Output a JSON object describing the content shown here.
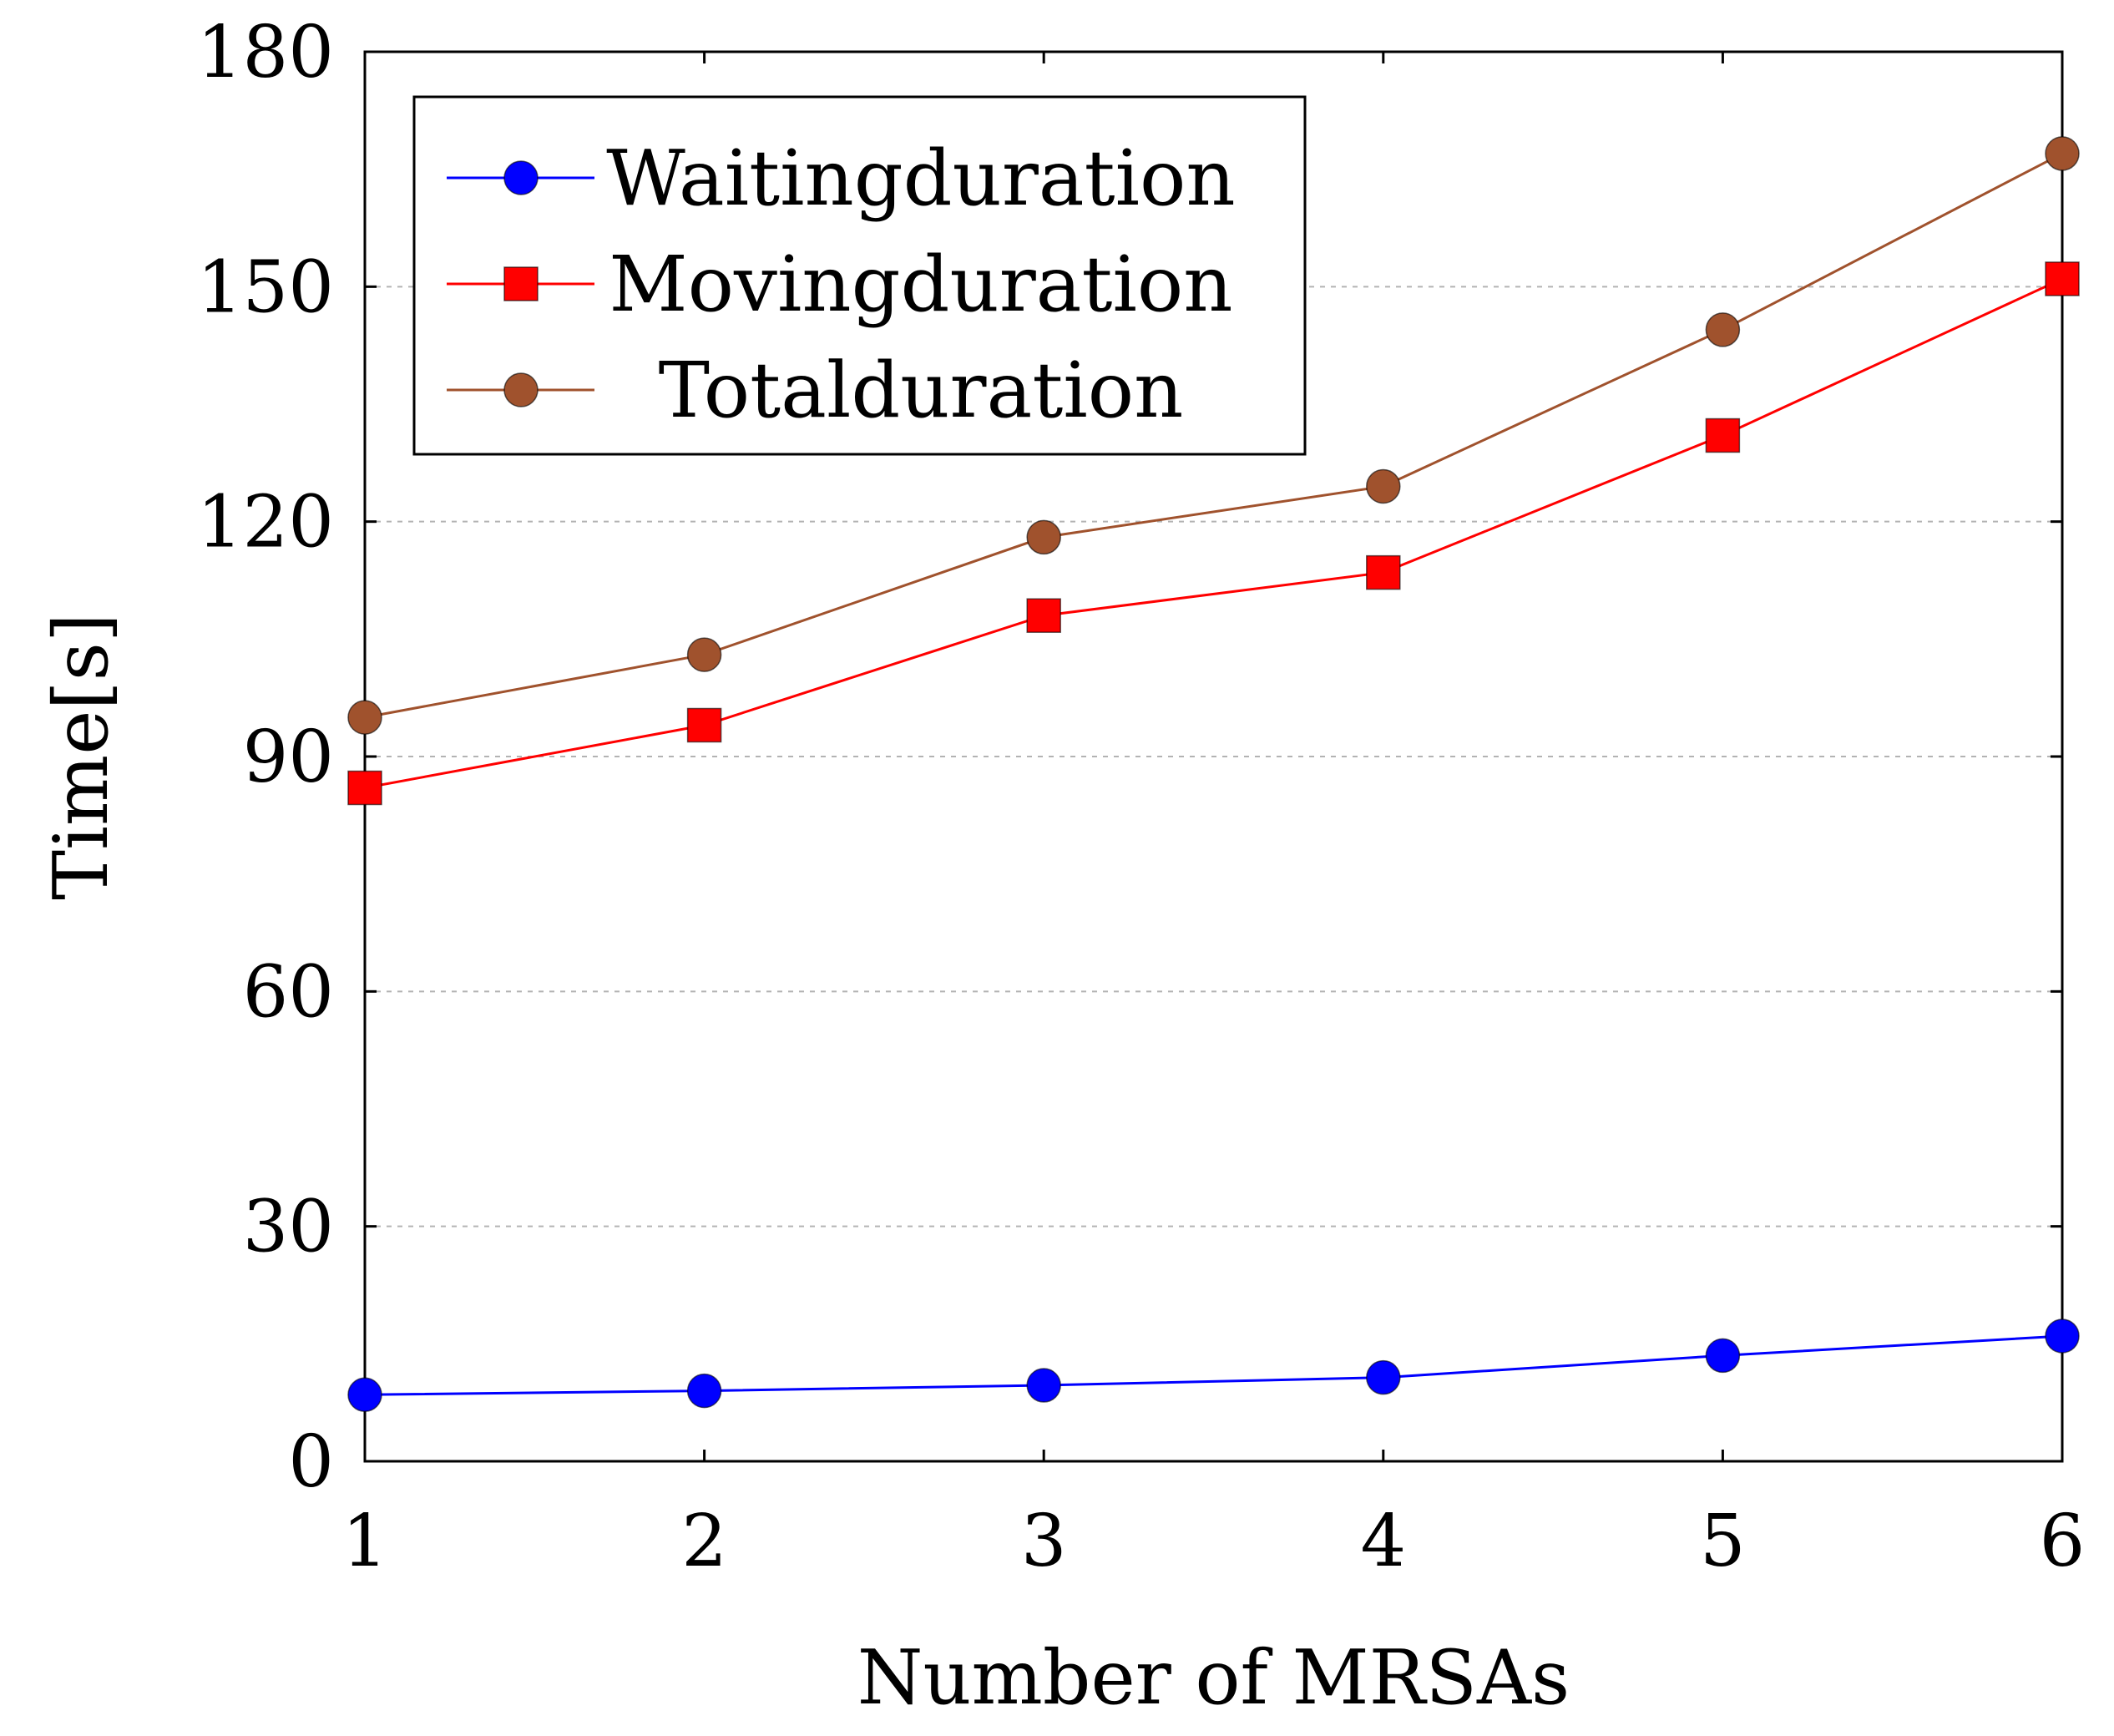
{
  "chart_data": {
    "type": "line",
    "title": "",
    "xlabel": "Number of MRSAs",
    "ylabel": "Time[s]",
    "x": [
      1,
      2,
      3,
      4,
      5,
      6
    ],
    "xlim": [
      1,
      6
    ],
    "ylim": [
      0,
      180
    ],
    "xticks": [
      "1",
      "2",
      "3",
      "4",
      "5",
      "6"
    ],
    "yticks": [
      "0",
      "30",
      "60",
      "90",
      "120",
      "150",
      "180"
    ],
    "grid": "horizontal dashed",
    "legend_position": "top-left",
    "series": [
      {
        "name": "Waitingduration",
        "values": [
          8.5,
          9.0,
          9.7,
          10.7,
          13.5,
          16.0
        ],
        "color": "#0000ff",
        "marker": "circle"
      },
      {
        "name": "Movingduration",
        "values": [
          86.0,
          94.0,
          108.0,
          113.5,
          131.0,
          151.0
        ],
        "color": "#ff0000",
        "marker": "square"
      },
      {
        "name": "Totalduration",
        "values": [
          95.0,
          103.0,
          118.0,
          124.5,
          144.5,
          167.0
        ],
        "color": "#a0522d",
        "marker": "circle"
      }
    ]
  }
}
